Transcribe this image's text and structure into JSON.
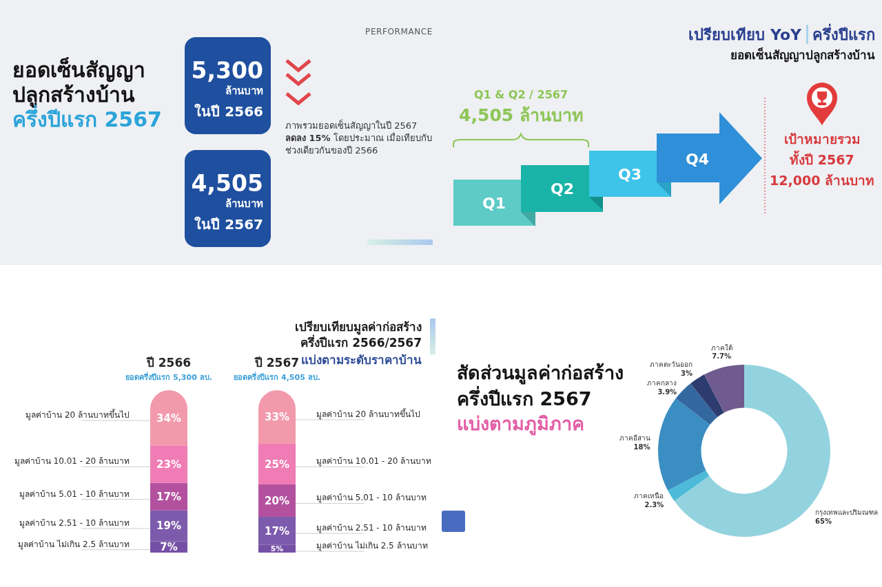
{
  "chart_data": [
    {
      "type": "other",
      "title": "ยอดเซ็นสัญญา ปลูกสร้างบ้าน",
      "subtitle": "ครึ่งปีแรก 2567",
      "annotations": [
        "PERFORMANCE",
        "5,300",
        "ล้านบาท",
        "ในปี 2566",
        "4,505",
        "ล้านบาท",
        "ในปี 2567",
        "ภาพรวมยอดเซ็นสัญญาในปี 2567",
        "ลดลง 15%",
        "โดยประมาณ เมื่อเทียบกับ",
        "ช่วงเดียวกันของปี 2566"
      ]
    },
    {
      "type": "other",
      "title": "เปรียบเทียบ YoY",
      "subtitle": "ครึ่งปีแรก",
      "annotations": [
        "ยอดเซ็นสัญญาปลูกสร้างบ้าน",
        "Q1 & Q2 / 2567",
        "4,505 ล้านบาท",
        "Q1",
        "Q2",
        "Q3",
        "Q4",
        "เป้าหมายรวม",
        "ทั้งปี 2567",
        "12,000 ล้านบาท"
      ]
    },
    {
      "type": "bar",
      "stacked": true,
      "title": "เปรียบเทียบมูลค่าก่อสร้าง ครึ่งปีแรก 2566/2567",
      "subtitle": "แบ่งตามระดับราคาบ้าน",
      "categories": [
        "ปี 2566",
        "ปี 2567"
      ],
      "annotations": [
        "ยอดครึ่งปีแรก 5,300 ลบ.",
        "ยอดครึ่งปีแรก 4,505 ลบ."
      ],
      "series": [
        {
          "name": "มูลค่าบ้าน ไม่เกิน 2.5 ล้านบาท",
          "color": "#7650a6",
          "values": [
            7,
            5
          ],
          "value_labels": [
            "7%",
            "5%"
          ]
        },
        {
          "name": "มูลค่าบ้าน 2.51 - 10 ล้านบาท",
          "color": "#7d5bac",
          "values": [
            19,
            17
          ],
          "value_labels": [
            "19%",
            "17%"
          ]
        },
        {
          "name": "มูลค่าบ้าน 5.01 - 10 ล้านบาท",
          "color": "#b3519f",
          "values": [
            17,
            20
          ],
          "value_labels": [
            "17%",
            "20%"
          ]
        },
        {
          "name": "มูลค่าบ้าน 10.01 - 20 ล้านบาท",
          "color": "#f07cb5",
          "values": [
            23,
            25
          ],
          "value_labels": [
            "23%",
            "25%"
          ]
        },
        {
          "name": "มูลค่าบ้าน 20 ล้านบาทขึ้นไป",
          "color": "#f29aac",
          "values": [
            34,
            33
          ],
          "value_labels": [
            "34%",
            "33%"
          ]
        }
      ]
    },
    {
      "type": "donut",
      "title": "สัดส่วนมูลค่าก่อสร้าง ครึ่งปีแรก 2567",
      "subtitle": "แบ่งตามภูมิภาค",
      "categories": [
        "กรุงเทพและปริมณฑล",
        "ภาคเหนือ",
        "ภาคอีสาน",
        "ภาคกลาง",
        "ภาคตะวันออก",
        "ภาคใต้"
      ],
      "values": [
        65,
        2.3,
        18,
        3.9,
        3,
        7.7
      ],
      "colors": [
        "#93d3df",
        "#4dbad9",
        "#3b8ec2",
        "#33679f",
        "#2d3c6e",
        "#6f5b8e"
      ],
      "value_labels": [
        "65%",
        "2.3%",
        "18%",
        "3.9%",
        "3%",
        "7.7%"
      ]
    }
  ]
}
